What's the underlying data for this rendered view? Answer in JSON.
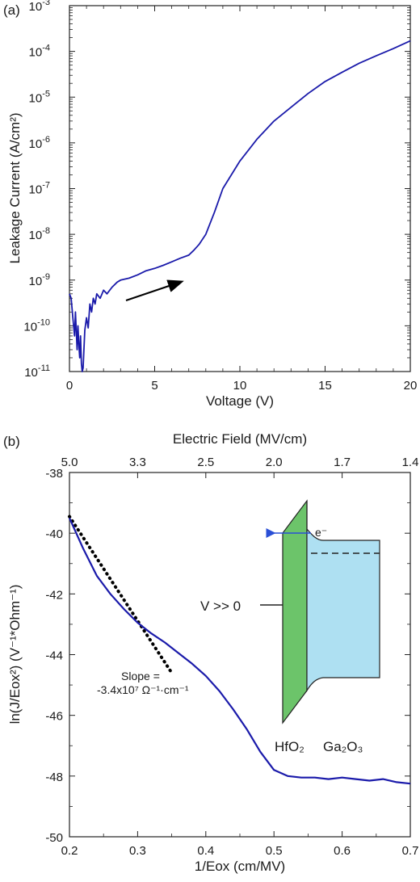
{
  "colors": {
    "line": "#1a1aaa",
    "axis": "#222222",
    "oxide": "#6cc46a",
    "semi": "#aee0f2",
    "electron": "#2a4fd6"
  },
  "chart_data": [
    {
      "panel": "(a)",
      "type": "line",
      "xlabel": "Voltage (V)",
      "ylabel": "Leakage Current (A/cm²)",
      "xlim": [
        0,
        20
      ],
      "ylim_exp": [
        -11,
        -3
      ],
      "yscale": "log",
      "xticks": [
        "0",
        "5",
        "10",
        "15",
        "20"
      ],
      "yticks": [
        {
          "base": "10",
          "exp": "-11"
        },
        {
          "base": "10",
          "exp": "-10"
        },
        {
          "base": "10",
          "exp": "-9"
        },
        {
          "base": "10",
          "exp": "-8"
        },
        {
          "base": "10",
          "exp": "-7"
        },
        {
          "base": "10",
          "exp": "-6"
        },
        {
          "base": "10",
          "exp": "-5"
        },
        {
          "base": "10",
          "exp": "-4"
        },
        {
          "base": "10",
          "exp": "-3"
        }
      ],
      "grid": false,
      "series": [
        {
          "x": [
            0.0,
            0.1,
            0.2,
            0.3,
            0.35,
            0.4,
            0.45,
            0.5,
            0.55,
            0.6,
            0.65,
            0.7,
            0.75,
            0.8,
            0.85,
            0.9,
            1.0,
            1.1,
            1.2,
            1.3,
            1.4,
            1.5,
            1.6,
            1.8,
            2.0,
            2.2,
            2.5,
            2.8,
            3.0,
            3.5,
            4.0,
            4.5,
            5.0,
            5.5,
            6.0,
            6.5,
            7.0,
            7.3,
            7.6,
            8.0,
            8.5,
            9.0,
            10.0,
            11.0,
            12.0,
            13.0,
            14.0,
            15.0,
            16.0,
            17.0,
            18.0,
            19.0,
            20.0
          ],
          "y": [
            5e-10,
            4e-10,
            1.5e-10,
            6e-11,
            2e-10,
            8e-11,
            3e-11,
            1e-10,
            4e-11,
            2e-11,
            6e-11,
            1.5e-11,
            1e-11,
            1.2e-11,
            3e-11,
            8e-11,
            1.5e-10,
            9e-11,
            3e-10,
            2e-10,
            4e-10,
            3e-10,
            5e-10,
            4e-10,
            6e-10,
            5e-10,
            7e-10,
            9e-10,
            1e-09,
            1.1e-09,
            1.3e-09,
            1.6e-09,
            1.8e-09,
            2.1e-09,
            2.5e-09,
            3e-09,
            3.5e-09,
            4.5e-09,
            6e-09,
            1e-08,
            3e-08,
            1e-07,
            4e-07,
            1.2e-06,
            3e-06,
            6e-06,
            1.2e-05,
            2.2e-05,
            3.5e-05,
            5.5e-05,
            8e-05,
            0.000115,
            0.00017
          ]
        }
      ]
    },
    {
      "panel": "(b)",
      "type": "line",
      "xlabel": "1/Eox (cm/MV)",
      "ylabel": "ln(J/Eox²) (V⁻¹*Ohm⁻¹)",
      "xlim": [
        0.2,
        0.7
      ],
      "ylim": [
        -50,
        -38
      ],
      "xticks": [
        "0.2",
        "0.3",
        "0.4",
        "0.5",
        "0.6",
        "0.7"
      ],
      "yticks": [
        "-50",
        "-48",
        "-46",
        "-44",
        "-42",
        "-40",
        "-38"
      ],
      "top_axis": {
        "label": "Electric Field (MV/cm)",
        "ticks": [
          "5.0",
          "3.3",
          "2.5",
          "2.0",
          "1.7",
          "1.4"
        ]
      },
      "grid": false,
      "series": [
        {
          "x": [
            0.2,
            0.22,
            0.24,
            0.26,
            0.28,
            0.3,
            0.32,
            0.34,
            0.36,
            0.38,
            0.4,
            0.42,
            0.44,
            0.46,
            0.48,
            0.5,
            0.52,
            0.54,
            0.56,
            0.58,
            0.6,
            0.62,
            0.64,
            0.66,
            0.68,
            0.7
          ],
          "y": [
            -39.5,
            -40.5,
            -41.4,
            -42.0,
            -42.5,
            -42.95,
            -43.3,
            -43.6,
            -43.95,
            -44.3,
            -44.7,
            -45.2,
            -45.8,
            -46.45,
            -47.2,
            -47.8,
            -48.0,
            -48.05,
            -48.05,
            -48.1,
            -48.05,
            -48.1,
            -48.15,
            -48.1,
            -48.2,
            -48.25
          ]
        },
        {
          "type": "fit",
          "x": [
            0.2,
            0.35
          ],
          "y": [
            -39.45,
            -44.6
          ]
        }
      ],
      "annotations": {
        "slope_line1": "Slope =",
        "slope_line2": "-3.4x10⁷ Ω⁻¹·cm⁻¹",
        "inset_bias": "V >> 0",
        "inset_electron": "e⁻",
        "inset_oxide": "HfO₂",
        "inset_semi": "Ga₂O₃"
      }
    }
  ]
}
